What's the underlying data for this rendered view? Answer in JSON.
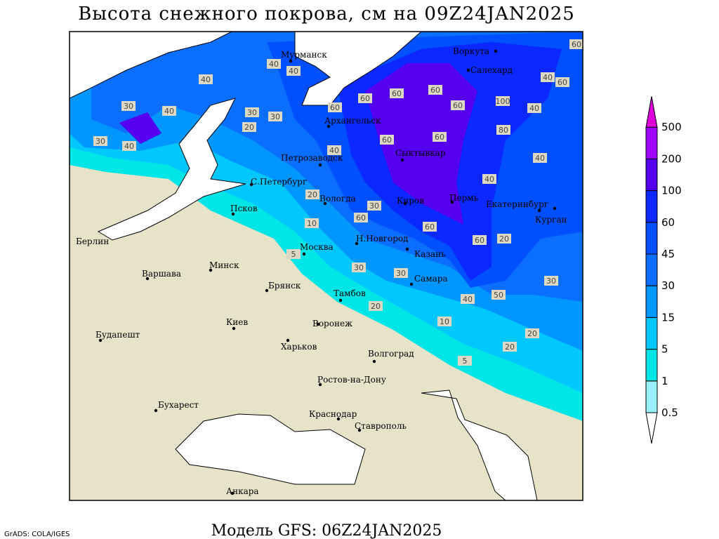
{
  "title": "Высота снежного покрова, см на 09Z24JAN2025",
  "model": "Модель GFS: 06Z24JAN2025",
  "credit": "GrADS: COLA/IGES",
  "legend": {
    "levels": [
      0.5,
      1,
      5,
      15,
      30,
      45,
      60,
      100,
      200,
      500
    ],
    "colors": [
      "#ffffff",
      "#98f0f8",
      "#00e6e6",
      "#00c8ff",
      "#0096ff",
      "#0a6eff",
      "#0050ff",
      "#0a28ff",
      "#5500ee",
      "#a000ff",
      "#dd00dd"
    ]
  },
  "cities": [
    "Мурманск",
    "Воркута",
    "Салехард",
    "Архангельск",
    "Петрозаводск",
    "Сыктывкар",
    "С.Петербург",
    "Вологда",
    "Киров",
    "Пермь",
    "Екатеринбург",
    "Курган",
    "Псков",
    "Н.Новгород",
    "Москва",
    "Казань",
    "Берлин",
    "Минск",
    "Варшава",
    "Самара",
    "Брянск",
    "Тамбов",
    "Киев",
    "Воронеж",
    "Будапешт",
    "Харьков",
    "Волгоград",
    "Ростов-на-Дону",
    "Бухарест",
    "Краснодар",
    "Ставрополь",
    "Анкара"
  ],
  "contour_labels": [
    40,
    40,
    40,
    30,
    40,
    30,
    30,
    20,
    30,
    40,
    60,
    60,
    60,
    60,
    100,
    40,
    60,
    80,
    60,
    60,
    40,
    20,
    10,
    5,
    60,
    30,
    60,
    60,
    20,
    30,
    20,
    40,
    50,
    10,
    20,
    20,
    5,
    30,
    30,
    60,
    60,
    40,
    40,
    40
  ]
}
